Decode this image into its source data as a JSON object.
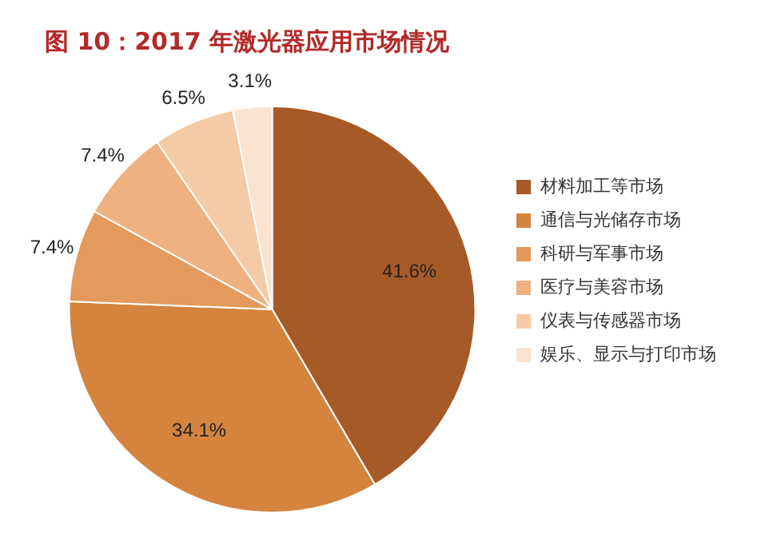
{
  "chart_data": {
    "type": "pie",
    "title": "图 10：2017 年激光器应用市场情况",
    "categories": [
      "材料加工等市场",
      "通信与光储存市场",
      "科研与军事市场",
      "医疗与美容市场",
      "仪表与传感器市场",
      "娱乐、显示与打印市场"
    ],
    "values": [
      41.6,
      34.1,
      7.4,
      7.4,
      6.5,
      3.1
    ],
    "colors": [
      "#a65a28",
      "#d4843e",
      "#e39a5c",
      "#eeb17f",
      "#f4cba6",
      "#f9e2cf"
    ],
    "value_labels": [
      "41.6%",
      "34.1%",
      "7.4%",
      "7.4%",
      "6.5%",
      "3.1%"
    ],
    "legend": "right"
  }
}
